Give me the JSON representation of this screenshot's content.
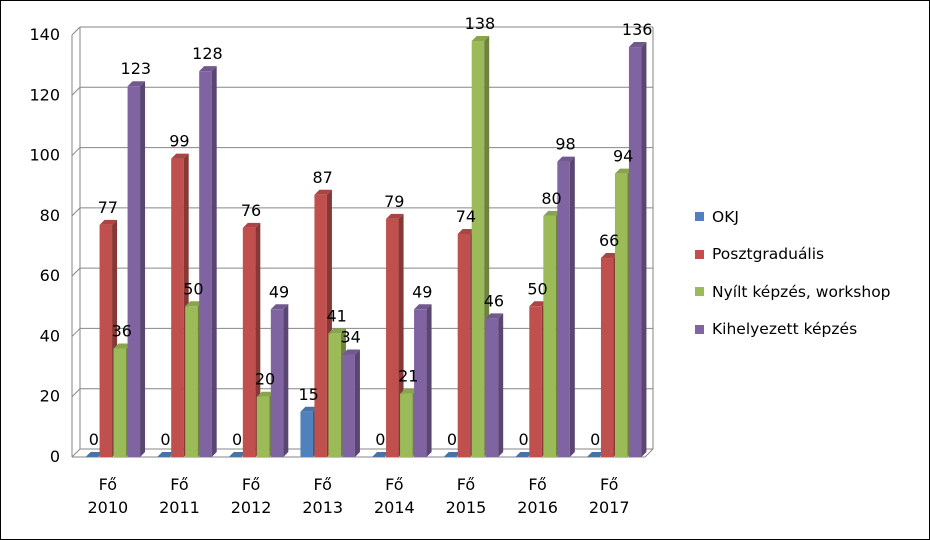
{
  "chart_data": {
    "type": "bar",
    "title": "",
    "xlabel": "",
    "ylabel": "",
    "ylim": [
      0,
      140
    ],
    "yticks": [
      0,
      20,
      40,
      60,
      80,
      100,
      120,
      140
    ],
    "grid": true,
    "legend_position": "right",
    "style": "3d-clustered-column",
    "categories": [
      [
        "Fő",
        "2010"
      ],
      [
        "Fő",
        "2011"
      ],
      [
        "Fő",
        "2012"
      ],
      [
        "Fő",
        "2013"
      ],
      [
        "Fő",
        "2014"
      ],
      [
        "Fő",
        "2015"
      ],
      [
        "Fő",
        "2016"
      ],
      [
        "Fő",
        "2017"
      ]
    ],
    "series": [
      {
        "name": "OKJ",
        "color": "#4F81BD",
        "values": [
          0,
          0,
          0,
          15,
          0,
          0,
          0,
          0
        ]
      },
      {
        "name": "Posztgraduális",
        "color": "#C0504D",
        "values": [
          77,
          99,
          76,
          87,
          79,
          74,
          50,
          66
        ]
      },
      {
        "name": "Nyílt képzés, workshop",
        "color": "#9BBB59",
        "values": [
          36,
          50,
          20,
          41,
          21,
          138,
          80,
          94
        ]
      },
      {
        "name": "Kihelyezett képzés",
        "color": "#8064A2",
        "values": [
          123,
          128,
          49,
          34,
          49,
          46,
          98,
          136
        ]
      }
    ]
  }
}
